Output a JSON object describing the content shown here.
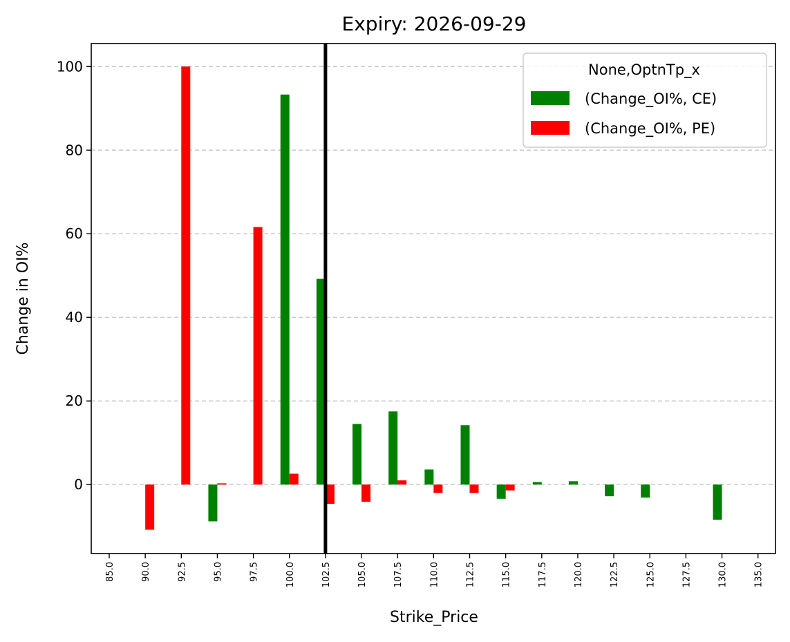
{
  "chart_data": {
    "type": "bar",
    "title": "Expiry: 2026-09-29",
    "xlabel": "Strike_Price",
    "ylabel": "Change in OI%",
    "categories": [
      "85.0",
      "90.0",
      "92.5",
      "95.0",
      "97.5",
      "100.0",
      "102.5",
      "105.0",
      "107.5",
      "110.0",
      "112.5",
      "115.0",
      "117.5",
      "120.0",
      "122.5",
      "125.0",
      "127.5",
      "130.0",
      "135.0"
    ],
    "series": [
      {
        "name": "(Change_OI%, CE)",
        "color": "#008000",
        "values": [
          0,
          0,
          0,
          -8.8,
          0,
          93.3,
          49.2,
          14.5,
          17.5,
          3.6,
          14.2,
          -3.4,
          0.6,
          0.8,
          -2.8,
          -3.1,
          0,
          -8.4,
          0
        ]
      },
      {
        "name": "(Change_OI%, PE)",
        "color": "#ff0000",
        "values": [
          0,
          -10.8,
          100.0,
          0.3,
          61.6,
          2.6,
          -4.6,
          -4.1,
          1.0,
          -2.0,
          -2.0,
          -1.4,
          0,
          0,
          0,
          0,
          0,
          0,
          0
        ]
      }
    ],
    "ylim": [
      -16.5,
      105.5
    ],
    "yticks": [
      0,
      20,
      40,
      60,
      80,
      100
    ],
    "grid": "y-dashed",
    "legend": {
      "title": "None,OptnTp_x",
      "position": "top-right"
    },
    "marker_line": {
      "category": "102.5",
      "color": "#000000"
    }
  }
}
